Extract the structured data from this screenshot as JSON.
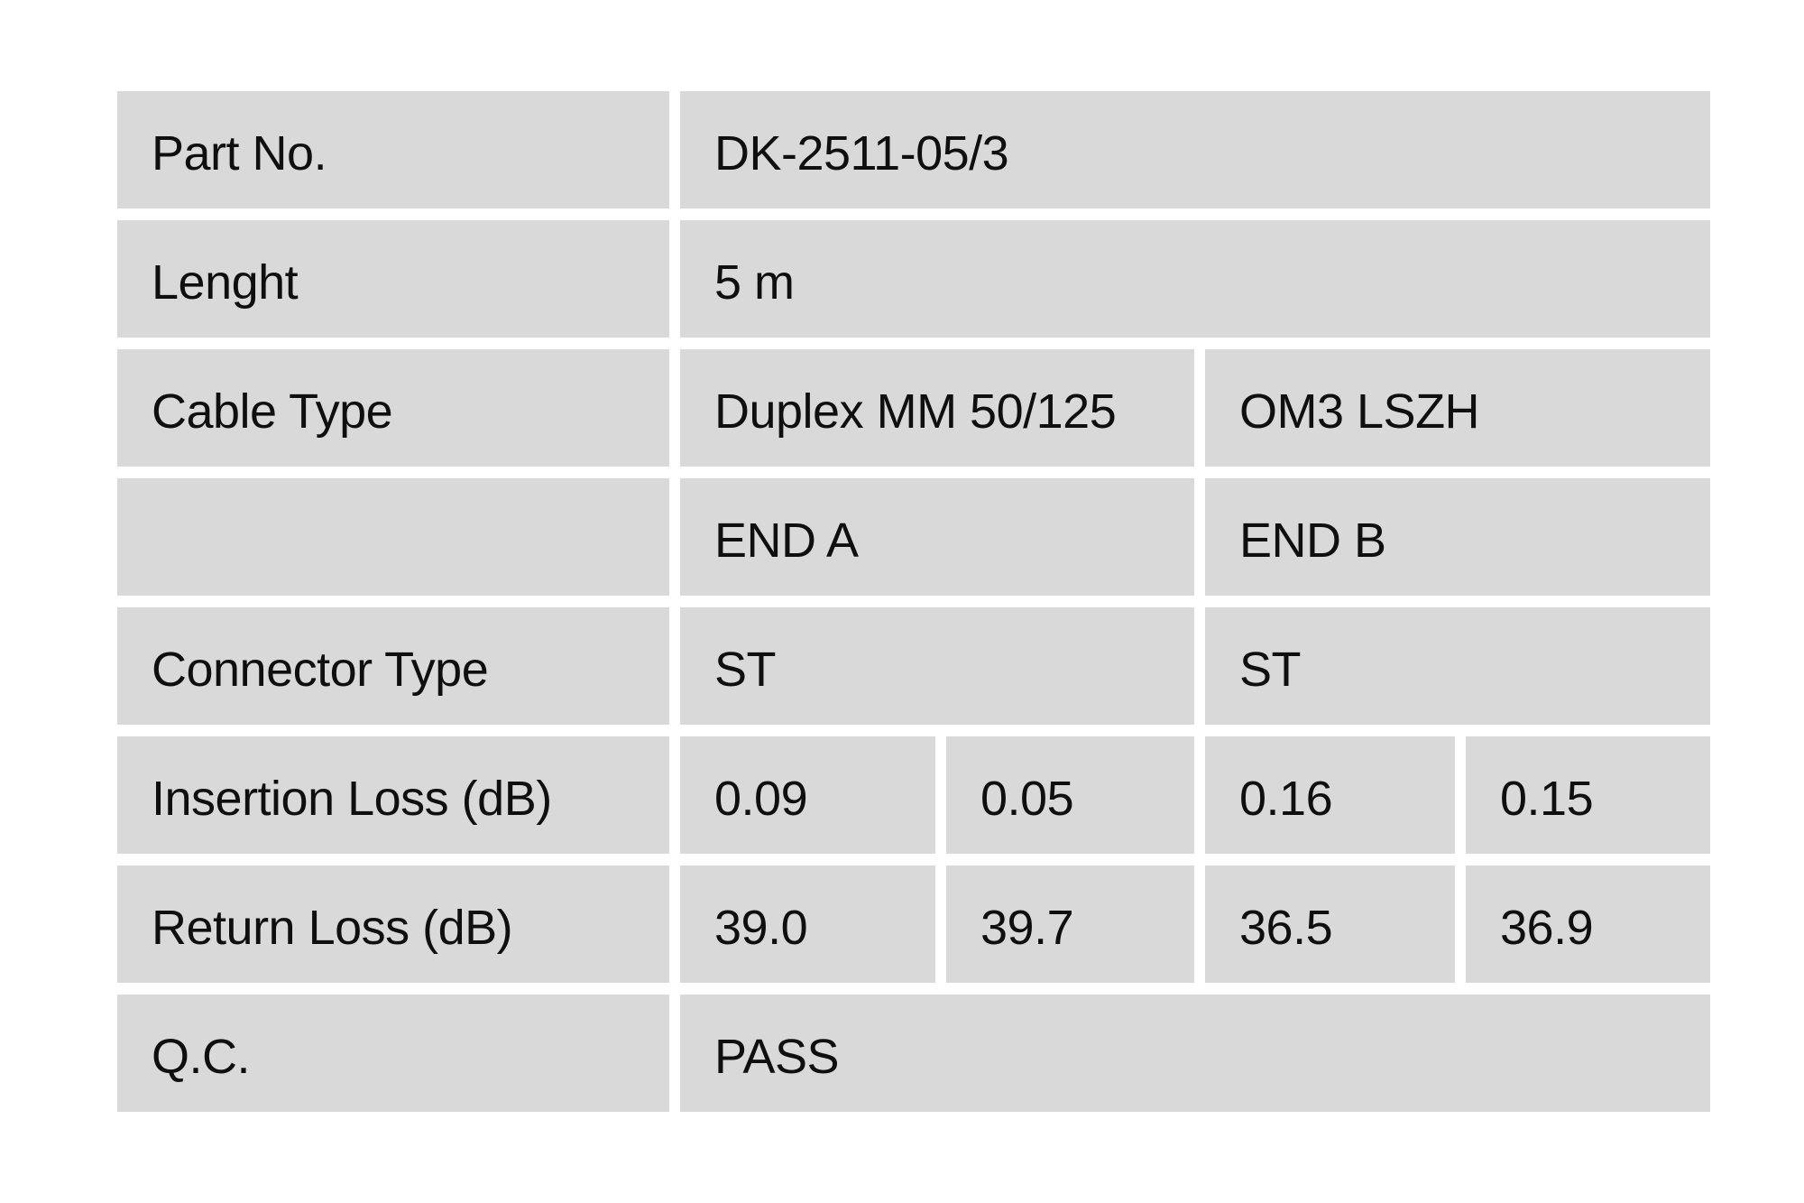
{
  "colors": {
    "page_bg": "#ffffff",
    "cell_bg": "#d9d9d9",
    "text": "#0f0f0f"
  },
  "table": {
    "rows": [
      {
        "label": "Part No.",
        "values": [
          "DK-2511-05/3"
        ]
      },
      {
        "label": "Lenght",
        "values": [
          "5 m"
        ]
      },
      {
        "label": "Cable Type",
        "values": [
          "Duplex MM 50/125",
          "OM3 LSZH"
        ]
      },
      {
        "label": "",
        "values": [
          "END A",
          "END B"
        ]
      },
      {
        "label": "Connector Type",
        "values": [
          "ST",
          "ST"
        ]
      },
      {
        "label": "Insertion Loss (dB)",
        "values": [
          "0.09",
          "0.05",
          "0.16",
          "0.15"
        ]
      },
      {
        "label": "Return Loss (dB)",
        "values": [
          "39.0",
          "39.7",
          "36.5",
          "36.9"
        ]
      },
      {
        "label": "Q.C.",
        "values": [
          "PASS"
        ]
      }
    ]
  }
}
